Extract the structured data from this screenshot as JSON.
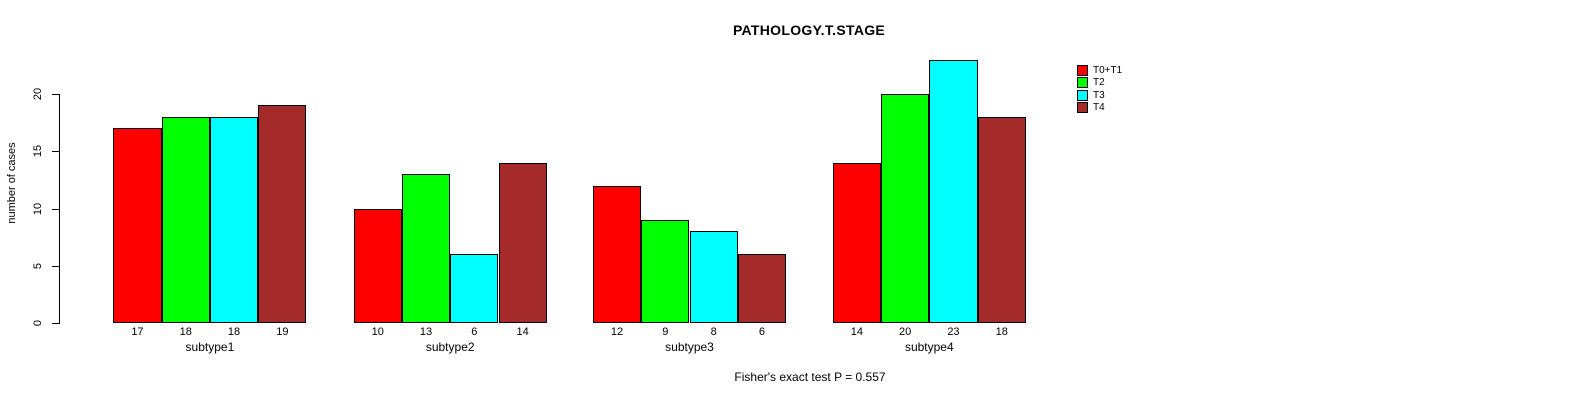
{
  "chart_data": {
    "type": "bar",
    "title": "PATHOLOGY.T.STAGE",
    "ylabel": "number of cases",
    "footer": "Fisher's exact test P = 0.557",
    "categories": [
      "subtype1",
      "subtype2",
      "subtype3",
      "subtype4"
    ],
    "series": [
      {
        "name": "T0+T1",
        "color": "#FF0000",
        "values": [
          17,
          10,
          12,
          14
        ]
      },
      {
        "name": "T2",
        "color": "#00FF00",
        "values": [
          18,
          13,
          9,
          20
        ]
      },
      {
        "name": "T3",
        "color": "#00FFFF",
        "values": [
          18,
          6,
          8,
          23
        ]
      },
      {
        "name": "T4",
        "color": "#A52A2A",
        "values": [
          19,
          14,
          6,
          18
        ]
      }
    ],
    "yticks": [
      0,
      5,
      10,
      15,
      20
    ],
    "ylim": [
      0,
      20
    ],
    "grid": false,
    "legend_position": "top-right",
    "bar_value_labels": true,
    "bar_border_color": "#000000",
    "background_color": "#FFFFFF"
  }
}
